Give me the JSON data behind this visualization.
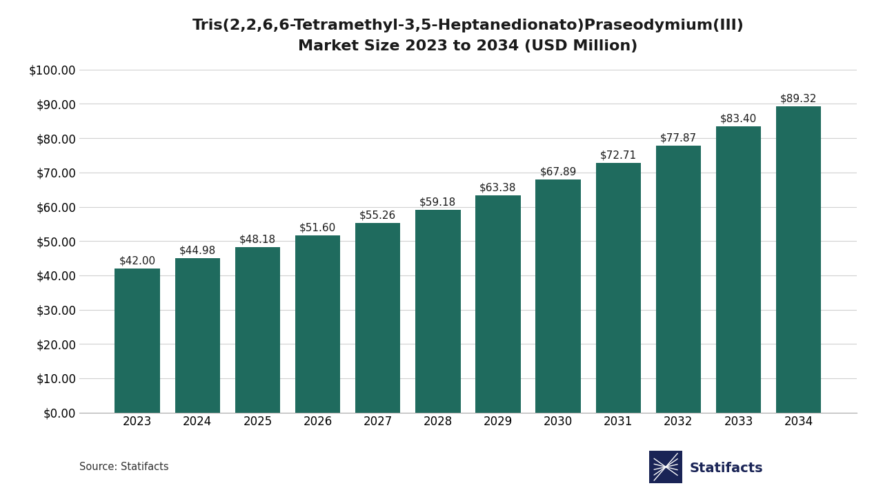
{
  "title_line1": "Tris(2,2,6,6-Tetramethyl-3,5-Heptanedionato)Praseodymium(III)",
  "title_line2": "Market Size 2023 to 2034 (USD Million)",
  "years": [
    2023,
    2024,
    2025,
    2026,
    2027,
    2028,
    2029,
    2030,
    2031,
    2032,
    2033,
    2034
  ],
  "values": [
    42.0,
    44.98,
    48.18,
    51.6,
    55.26,
    59.18,
    63.38,
    67.89,
    72.71,
    77.87,
    83.4,
    89.32
  ],
  "bar_color": "#1f6b5e",
  "background_color": "#ffffff",
  "ylim": [
    0,
    100
  ],
  "yticks": [
    0,
    10,
    20,
    30,
    40,
    50,
    60,
    70,
    80,
    90,
    100
  ],
  "source_text": "Source: Statifacts",
  "statifacts_text": "Statifacts",
  "title_fontsize": 16,
  "tick_fontsize": 12,
  "label_fontsize": 11,
  "source_fontsize": 10.5,
  "grid_color": "#d0d0d0",
  "axis_color": "#aaaaaa",
  "text_color": "#1a1a1a",
  "logo_color": "#1a2456"
}
